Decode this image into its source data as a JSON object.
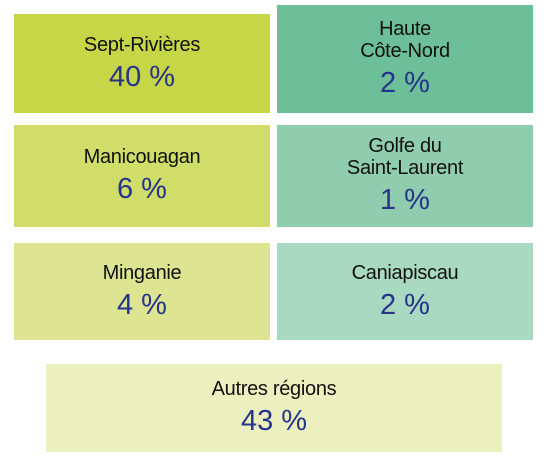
{
  "tiles": [
    {
      "label": [
        "Sept-Rivières"
      ],
      "value": "40 %",
      "color": "#c6d647"
    },
    {
      "label": [
        "Haute",
        "Côte-Nord"
      ],
      "value": "2 %",
      "color": "#6cbf98"
    },
    {
      "label": [
        "Manicouagan"
      ],
      "value": "6 %",
      "color": "#d0dd68"
    },
    {
      "label": [
        "Golfe du",
        "Saint-Laurent"
      ],
      "value": "1 %",
      "color": "#90ccae"
    },
    {
      "label": [
        "Minganie"
      ],
      "value": "4 %",
      "color": "#dde592"
    },
    {
      "label": [
        "Caniapiscau"
      ],
      "value": "2 %",
      "color": "#a9d9c0"
    },
    {
      "label": [
        "Autres régions"
      ],
      "value": "43 %",
      "color": "#ecefbe"
    }
  ]
}
